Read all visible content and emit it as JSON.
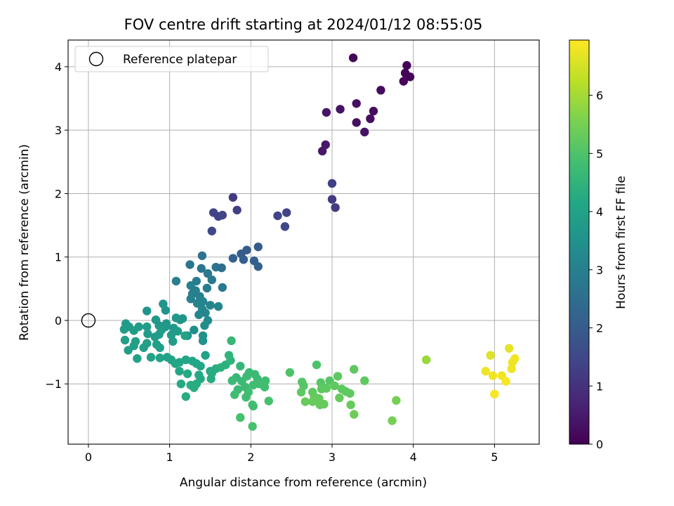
{
  "chart_data": {
    "type": "scatter",
    "title": "FOV centre drift starting at 2024/01/12 08:55:05",
    "xlabel": "Angular distance from reference (arcmin)",
    "ylabel": "Rotation from reference (arcmin)",
    "colorbar_label": "Hours from first FF file",
    "xlim": [
      -0.25,
      5.55
    ],
    "ylim": [
      -1.95,
      4.42
    ],
    "xticks": [
      0,
      1,
      2,
      3,
      4,
      5
    ],
    "yticks": [
      -1,
      0,
      1,
      2,
      3,
      4
    ],
    "colorbar_range": [
      0,
      6.95
    ],
    "colorbar_ticks": [
      0,
      1,
      2,
      3,
      4,
      5,
      6
    ],
    "colormap": "viridis",
    "grid": true,
    "legend": {
      "location": "upper-left",
      "label": "Reference platepar",
      "marker": "open-circle"
    },
    "reference_point": {
      "x": 0,
      "y": 0
    },
    "points": [
      {
        "x": 3.26,
        "y": 4.14,
        "h": 0.15
      },
      {
        "x": 3.92,
        "y": 4.02,
        "h": 0.05
      },
      {
        "x": 3.9,
        "y": 3.9,
        "h": 0.08
      },
      {
        "x": 3.96,
        "y": 3.84,
        "h": 0.06
      },
      {
        "x": 3.88,
        "y": 3.77,
        "h": 0.1
      },
      {
        "x": 3.6,
        "y": 3.63,
        "h": 0.2
      },
      {
        "x": 3.3,
        "y": 3.42,
        "h": 0.3
      },
      {
        "x": 3.1,
        "y": 3.33,
        "h": 0.35
      },
      {
        "x": 3.51,
        "y": 3.3,
        "h": 0.25
      },
      {
        "x": 2.93,
        "y": 3.28,
        "h": 0.4
      },
      {
        "x": 3.47,
        "y": 3.18,
        "h": 0.3
      },
      {
        "x": 3.3,
        "y": 3.12,
        "h": 0.3
      },
      {
        "x": 3.4,
        "y": 2.97,
        "h": 0.35
      },
      {
        "x": 2.92,
        "y": 2.77,
        "h": 0.45
      },
      {
        "x": 2.88,
        "y": 2.67,
        "h": 0.45
      },
      {
        "x": 3.0,
        "y": 2.16,
        "h": 1.25
      },
      {
        "x": 3.0,
        "y": 1.91,
        "h": 1.2
      },
      {
        "x": 3.04,
        "y": 1.78,
        "h": 1.2
      },
      {
        "x": 1.78,
        "y": 1.94,
        "h": 1.2
      },
      {
        "x": 1.83,
        "y": 1.74,
        "h": 1.3
      },
      {
        "x": 1.54,
        "y": 1.7,
        "h": 1.4
      },
      {
        "x": 1.6,
        "y": 1.64,
        "h": 1.4
      },
      {
        "x": 1.65,
        "y": 1.66,
        "h": 1.4
      },
      {
        "x": 2.44,
        "y": 1.7,
        "h": 1.4
      },
      {
        "x": 2.33,
        "y": 1.65,
        "h": 1.4
      },
      {
        "x": 2.42,
        "y": 1.48,
        "h": 1.5
      },
      {
        "x": 1.52,
        "y": 1.41,
        "h": 1.5
      },
      {
        "x": 2.09,
        "y": 1.16,
        "h": 2.0
      },
      {
        "x": 1.95,
        "y": 1.11,
        "h": 2.0
      },
      {
        "x": 1.88,
        "y": 1.05,
        "h": 2.0
      },
      {
        "x": 1.78,
        "y": 0.98,
        "h": 2.1
      },
      {
        "x": 1.91,
        "y": 0.96,
        "h": 2.1
      },
      {
        "x": 2.04,
        "y": 0.94,
        "h": 2.1
      },
      {
        "x": 2.09,
        "y": 0.85,
        "h": 2.2
      },
      {
        "x": 1.4,
        "y": 1.02,
        "h": 2.6
      },
      {
        "x": 1.25,
        "y": 0.88,
        "h": 2.7
      },
      {
        "x": 1.57,
        "y": 0.84,
        "h": 2.6
      },
      {
        "x": 1.64,
        "y": 0.83,
        "h": 2.5
      },
      {
        "x": 1.39,
        "y": 0.82,
        "h": 2.7
      },
      {
        "x": 1.47,
        "y": 0.74,
        "h": 2.8
      },
      {
        "x": 1.52,
        "y": 0.64,
        "h": 2.8
      },
      {
        "x": 1.33,
        "y": 0.62,
        "h": 2.9
      },
      {
        "x": 1.08,
        "y": 0.62,
        "h": 3.0
      },
      {
        "x": 1.65,
        "y": 0.52,
        "h": 2.8
      },
      {
        "x": 1.46,
        "y": 0.51,
        "h": 2.9
      },
      {
        "x": 1.26,
        "y": 0.55,
        "h": 3.0
      },
      {
        "x": 1.32,
        "y": 0.47,
        "h": 3.0
      },
      {
        "x": 1.28,
        "y": 0.42,
        "h": 3.0
      },
      {
        "x": 1.37,
        "y": 0.38,
        "h": 3.0
      },
      {
        "x": 1.26,
        "y": 0.34,
        "h": 3.0
      },
      {
        "x": 1.41,
        "y": 0.3,
        "h": 3.1
      },
      {
        "x": 1.34,
        "y": 0.27,
        "h": 3.1
      },
      {
        "x": 1.6,
        "y": 0.22,
        "h": 3.1
      },
      {
        "x": 1.5,
        "y": 0.24,
        "h": 3.1
      },
      {
        "x": 1.4,
        "y": 0.18,
        "h": 3.2
      },
      {
        "x": 1.44,
        "y": 0.12,
        "h": 3.2
      },
      {
        "x": 1.36,
        "y": 0.09,
        "h": 3.2
      },
      {
        "x": 1.47,
        "y": 0.0,
        "h": 3.3
      },
      {
        "x": 1.43,
        "y": -0.08,
        "h": 3.4
      },
      {
        "x": 1.3,
        "y": -0.15,
        "h": 3.4
      },
      {
        "x": 1.41,
        "y": -0.24,
        "h": 3.5
      },
      {
        "x": 1.41,
        "y": -0.32,
        "h": 3.5
      },
      {
        "x": 1.22,
        "y": -0.24,
        "h": 3.5
      },
      {
        "x": 0.92,
        "y": 0.26,
        "h": 3.6
      },
      {
        "x": 0.95,
        "y": 0.16,
        "h": 3.6
      },
      {
        "x": 0.72,
        "y": 0.15,
        "h": 3.6
      },
      {
        "x": 1.08,
        "y": 0.04,
        "h": 3.7
      },
      {
        "x": 0.83,
        "y": 0.01,
        "h": 3.7
      },
      {
        "x": 1.13,
        "y": 0.01,
        "h": 3.7
      },
      {
        "x": 1.16,
        "y": 0.03,
        "h": 3.6
      },
      {
        "x": 0.96,
        "y": -0.05,
        "h": 3.7
      },
      {
        "x": 0.87,
        "y": -0.08,
        "h": 3.7
      },
      {
        "x": 0.95,
        "y": -0.1,
        "h": 3.7
      },
      {
        "x": 1.05,
        "y": -0.12,
        "h": 3.7
      },
      {
        "x": 0.72,
        "y": -0.1,
        "h": 3.8
      },
      {
        "x": 0.9,
        "y": -0.15,
        "h": 3.8
      },
      {
        "x": 1.1,
        "y": -0.17,
        "h": 3.8
      },
      {
        "x": 0.46,
        "y": -0.05,
        "h": 3.8
      },
      {
        "x": 0.5,
        "y": -0.1,
        "h": 3.8
      },
      {
        "x": 0.62,
        "y": -0.1,
        "h": 3.8
      },
      {
        "x": 0.44,
        "y": -0.14,
        "h": 3.8
      },
      {
        "x": 0.56,
        "y": -0.16,
        "h": 3.8
      },
      {
        "x": 0.73,
        "y": -0.21,
        "h": 3.8
      },
      {
        "x": 0.87,
        "y": -0.22,
        "h": 3.8
      },
      {
        "x": 1.02,
        "y": -0.23,
        "h": 3.8
      },
      {
        "x": 0.82,
        "y": -0.26,
        "h": 3.8
      },
      {
        "x": 0.45,
        "y": -0.31,
        "h": 3.9
      },
      {
        "x": 0.58,
        "y": -0.33,
        "h": 3.9
      },
      {
        "x": 0.72,
        "y": -0.36,
        "h": 3.9
      },
      {
        "x": 1.04,
        "y": -0.33,
        "h": 3.8
      },
      {
        "x": 0.84,
        "y": -0.38,
        "h": 3.9
      },
      {
        "x": 0.56,
        "y": -0.4,
        "h": 3.9
      },
      {
        "x": 0.68,
        "y": -0.43,
        "h": 3.9
      },
      {
        "x": 0.88,
        "y": -0.43,
        "h": 3.9
      },
      {
        "x": 0.49,
        "y": -0.47,
        "h": 3.9
      },
      {
        "x": 0.6,
        "y": -0.6,
        "h": 4.0
      },
      {
        "x": 0.77,
        "y": -0.58,
        "h": 4.0
      },
      {
        "x": 0.88,
        "y": -0.59,
        "h": 4.0
      },
      {
        "x": 0.97,
        "y": -0.58,
        "h": 4.0
      },
      {
        "x": 1.02,
        "y": -0.62,
        "h": 4.0
      },
      {
        "x": 1.07,
        "y": -0.68,
        "h": 4.1
      },
      {
        "x": 1.12,
        "y": -0.66,
        "h": 4.1
      },
      {
        "x": 1.2,
        "y": -0.62,
        "h": 4.1
      },
      {
        "x": 1.28,
        "y": -0.64,
        "h": 4.1
      },
      {
        "x": 1.33,
        "y": -0.68,
        "h": 4.1
      },
      {
        "x": 1.38,
        "y": -0.72,
        "h": 4.1
      },
      {
        "x": 1.44,
        "y": -0.55,
        "h": 4.0
      },
      {
        "x": 1.12,
        "y": -0.8,
        "h": 4.1
      },
      {
        "x": 1.22,
        "y": -0.84,
        "h": 4.2
      },
      {
        "x": 1.36,
        "y": -0.86,
        "h": 4.2
      },
      {
        "x": 1.38,
        "y": -0.92,
        "h": 4.2
      },
      {
        "x": 1.5,
        "y": -0.8,
        "h": 4.2
      },
      {
        "x": 1.57,
        "y": -0.76,
        "h": 4.3
      },
      {
        "x": 1.52,
        "y": -0.83,
        "h": 4.3
      },
      {
        "x": 1.51,
        "y": -0.92,
        "h": 4.3
      },
      {
        "x": 1.14,
        "y": -1.0,
        "h": 4.2
      },
      {
        "x": 1.26,
        "y": -1.02,
        "h": 4.3
      },
      {
        "x": 1.3,
        "y": -1.06,
        "h": 4.3
      },
      {
        "x": 1.33,
        "y": -1.0,
        "h": 4.3
      },
      {
        "x": 1.2,
        "y": -1.2,
        "h": 4.3
      },
      {
        "x": 1.19,
        "y": -0.24,
        "h": 4.0
      },
      {
        "x": 1.63,
        "y": -0.74,
        "h": 4.4
      },
      {
        "x": 1.69,
        "y": -0.7,
        "h": 4.4
      },
      {
        "x": 1.73,
        "y": -0.55,
        "h": 4.5
      },
      {
        "x": 1.75,
        "y": -0.63,
        "h": 4.5
      },
      {
        "x": 1.76,
        "y": -0.32,
        "h": 4.6
      },
      {
        "x": 1.87,
        "y": -0.72,
        "h": 4.6
      },
      {
        "x": 1.82,
        "y": -0.9,
        "h": 4.6
      },
      {
        "x": 1.77,
        "y": -0.95,
        "h": 4.7
      },
      {
        "x": 1.89,
        "y": -0.96,
        "h": 4.7
      },
      {
        "x": 1.95,
        "y": -0.88,
        "h": 4.7
      },
      {
        "x": 1.98,
        "y": -0.82,
        "h": 4.7
      },
      {
        "x": 2.05,
        "y": -0.85,
        "h": 4.7
      },
      {
        "x": 2.08,
        "y": -0.92,
        "h": 4.7
      },
      {
        "x": 2.1,
        "y": -1.0,
        "h": 4.8
      },
      {
        "x": 1.93,
        "y": -1.05,
        "h": 4.7
      },
      {
        "x": 1.84,
        "y": -1.09,
        "h": 4.7
      },
      {
        "x": 1.97,
        "y": -1.13,
        "h": 4.8
      },
      {
        "x": 2.03,
        "y": -1.02,
        "h": 4.8
      },
      {
        "x": 2.18,
        "y": -0.95,
        "h": 4.8
      },
      {
        "x": 2.17,
        "y": -1.05,
        "h": 4.8
      },
      {
        "x": 1.8,
        "y": -1.17,
        "h": 4.8
      },
      {
        "x": 1.94,
        "y": -1.21,
        "h": 4.8
      },
      {
        "x": 2.02,
        "y": -1.33,
        "h": 4.8
      },
      {
        "x": 2.03,
        "y": -1.35,
        "h": 4.8
      },
      {
        "x": 2.22,
        "y": -1.27,
        "h": 4.9
      },
      {
        "x": 1.87,
        "y": -1.53,
        "h": 4.9
      },
      {
        "x": 2.02,
        "y": -1.67,
        "h": 4.9
      },
      {
        "x": 2.48,
        "y": -0.82,
        "h": 5.0
      },
      {
        "x": 2.81,
        "y": -0.7,
        "h": 5.0
      },
      {
        "x": 2.63,
        "y": -0.97,
        "h": 5.1
      },
      {
        "x": 2.65,
        "y": -1.03,
        "h": 5.1
      },
      {
        "x": 2.86,
        "y": -0.98,
        "h": 5.1
      },
      {
        "x": 2.97,
        "y": -0.95,
        "h": 5.1
      },
      {
        "x": 3.07,
        "y": -0.88,
        "h": 5.2
      },
      {
        "x": 3.27,
        "y": -0.77,
        "h": 5.2
      },
      {
        "x": 3.4,
        "y": -0.95,
        "h": 5.2
      },
      {
        "x": 2.62,
        "y": -1.13,
        "h": 5.2
      },
      {
        "x": 2.76,
        "y": -1.13,
        "h": 5.2
      },
      {
        "x": 2.87,
        "y": -1.08,
        "h": 5.2
      },
      {
        "x": 2.93,
        "y": -1.07,
        "h": 5.2
      },
      {
        "x": 3.03,
        "y": -1.03,
        "h": 5.2
      },
      {
        "x": 3.12,
        "y": -1.08,
        "h": 5.2
      },
      {
        "x": 3.17,
        "y": -1.12,
        "h": 5.2
      },
      {
        "x": 3.22,
        "y": -1.15,
        "h": 5.2
      },
      {
        "x": 2.78,
        "y": -1.2,
        "h": 5.3
      },
      {
        "x": 2.84,
        "y": -1.23,
        "h": 5.3
      },
      {
        "x": 3.09,
        "y": -1.22,
        "h": 5.3
      },
      {
        "x": 2.67,
        "y": -1.28,
        "h": 5.3
      },
      {
        "x": 2.76,
        "y": -1.28,
        "h": 5.3
      },
      {
        "x": 2.85,
        "y": -1.33,
        "h": 5.3
      },
      {
        "x": 2.9,
        "y": -1.32,
        "h": 5.3
      },
      {
        "x": 3.23,
        "y": -1.33,
        "h": 5.3
      },
      {
        "x": 3.27,
        "y": -1.48,
        "h": 5.4
      },
      {
        "x": 3.79,
        "y": -1.26,
        "h": 5.5
      },
      {
        "x": 3.74,
        "y": -1.58,
        "h": 5.5
      },
      {
        "x": 4.16,
        "y": -0.62,
        "h": 5.9
      },
      {
        "x": 4.95,
        "y": -0.55,
        "h": 6.6
      },
      {
        "x": 5.18,
        "y": -0.44,
        "h": 6.7
      },
      {
        "x": 5.25,
        "y": -0.6,
        "h": 6.8
      },
      {
        "x": 5.22,
        "y": -0.66,
        "h": 6.8
      },
      {
        "x": 4.89,
        "y": -0.8,
        "h": 6.8
      },
      {
        "x": 5.21,
        "y": -0.76,
        "h": 6.8
      },
      {
        "x": 4.98,
        "y": -0.87,
        "h": 6.8
      },
      {
        "x": 5.09,
        "y": -0.87,
        "h": 6.8
      },
      {
        "x": 5.14,
        "y": -0.96,
        "h": 6.9
      },
      {
        "x": 5.0,
        "y": -1.16,
        "h": 6.9
      }
    ]
  }
}
